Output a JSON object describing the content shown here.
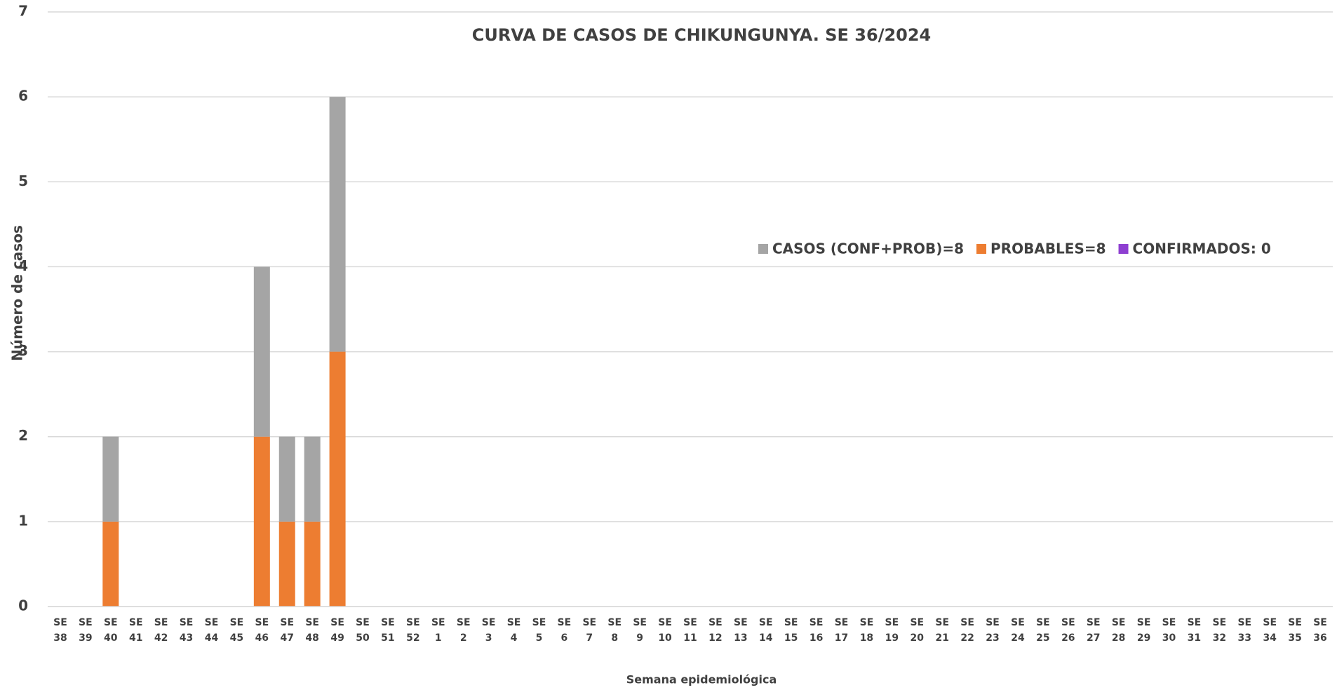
{
  "chart_data": {
    "type": "bar",
    "stacked": true,
    "title": "CURVA DE CASOS DE CHIKUNGUNYA. SE 36/2024",
    "x_label": "Semana epidemiológica",
    "y_label": "Número de casos",
    "categories": [
      "SE 38",
      "SE 39",
      "SE 40",
      "SE 41",
      "SE 42",
      "SE 43",
      "SE 44",
      "SE 45",
      "SE 46",
      "SE 47",
      "SE 48",
      "SE 49",
      "SE 50",
      "SE 51",
      "SE 52",
      "SE 1",
      "SE 2",
      "SE 3",
      "SE 4",
      "SE 5",
      "SE 6",
      "SE 7",
      "SE 8",
      "SE 9",
      "SE 10",
      "SE 11",
      "SE 12",
      "SE 13",
      "SE 14",
      "SE 15",
      "SE 16",
      "SE 17",
      "SE 18",
      "SE 19",
      "SE 20",
      "SE 21",
      "SE 22",
      "SE 23",
      "SE 24",
      "SE 25",
      "SE 26",
      "SE 27",
      "SE 28",
      "SE 29",
      "SE 30",
      "SE 31",
      "SE 32",
      "SE 33",
      "SE 34",
      "SE 35",
      "SE 36"
    ],
    "series": [
      {
        "name": "CASOS (CONF+PROB)=8",
        "color": "#a5a5a5",
        "values": [
          0,
          0,
          1,
          0,
          0,
          0,
          0,
          0,
          2,
          1,
          1,
          3,
          0,
          0,
          0,
          0,
          0,
          0,
          0,
          0,
          0,
          0,
          0,
          0,
          0,
          0,
          0,
          0,
          0,
          0,
          0,
          0,
          0,
          0,
          0,
          0,
          0,
          0,
          0,
          0,
          0,
          0,
          0,
          0,
          0,
          0,
          0,
          0,
          0,
          0,
          0
        ]
      },
      {
        "name": "PROBABLES=8",
        "color": "#ed7d31",
        "values": [
          0,
          0,
          1,
          0,
          0,
          0,
          0,
          0,
          2,
          1,
          1,
          3,
          0,
          0,
          0,
          0,
          0,
          0,
          0,
          0,
          0,
          0,
          0,
          0,
          0,
          0,
          0,
          0,
          0,
          0,
          0,
          0,
          0,
          0,
          0,
          0,
          0,
          0,
          0,
          0,
          0,
          0,
          0,
          0,
          0,
          0,
          0,
          0,
          0,
          0,
          0
        ]
      },
      {
        "name": "CONFIRMADOS: 0",
        "color": "#8e3fd1",
        "values": [
          0,
          0,
          0,
          0,
          0,
          0,
          0,
          0,
          0,
          0,
          0,
          0,
          0,
          0,
          0,
          0,
          0,
          0,
          0,
          0,
          0,
          0,
          0,
          0,
          0,
          0,
          0,
          0,
          0,
          0,
          0,
          0,
          0,
          0,
          0,
          0,
          0,
          0,
          0,
          0,
          0,
          0,
          0,
          0,
          0,
          0,
          0,
          0,
          0,
          0,
          0
        ]
      }
    ],
    "ylim": [
      0,
      7
    ],
    "yticks": [
      0,
      1,
      2,
      3,
      4,
      5,
      6,
      7
    ],
    "grid": true,
    "legend": "right"
  }
}
